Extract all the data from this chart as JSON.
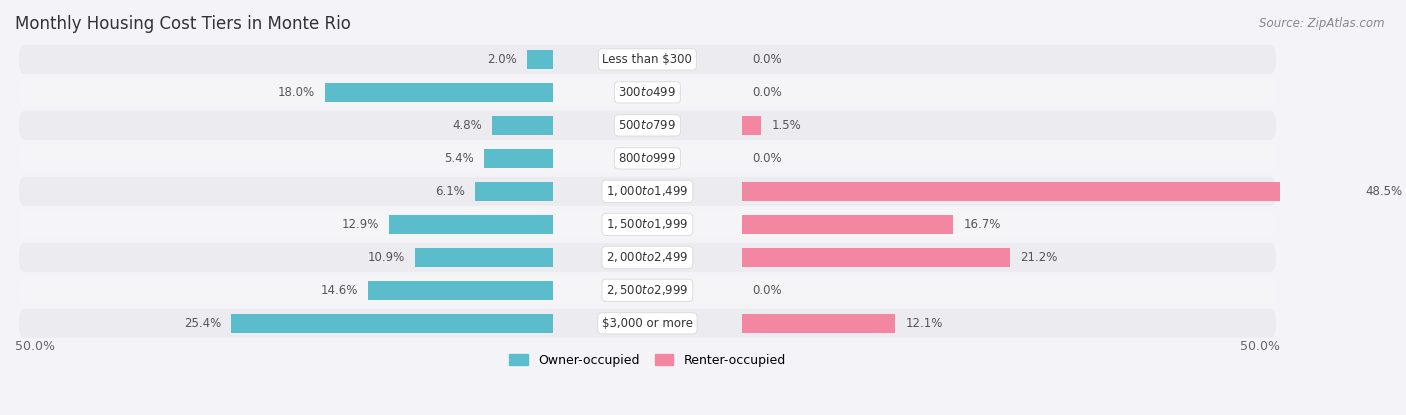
{
  "title": "Monthly Housing Cost Tiers in Monte Rio",
  "source": "Source: ZipAtlas.com",
  "categories": [
    "Less than $300",
    "$300 to $499",
    "$500 to $799",
    "$800 to $999",
    "$1,000 to $1,499",
    "$1,500 to $1,999",
    "$2,000 to $2,499",
    "$2,500 to $2,999",
    "$3,000 or more"
  ],
  "owner_values": [
    2.0,
    18.0,
    4.8,
    5.4,
    6.1,
    12.9,
    10.9,
    14.6,
    25.4
  ],
  "renter_values": [
    0.0,
    0.0,
    1.5,
    0.0,
    48.5,
    16.7,
    21.2,
    0.0,
    12.1
  ],
  "owner_color": "#5bbccc",
  "renter_color": "#f387a2",
  "axis_max": 50.0,
  "x_left_label": "50.0%",
  "x_right_label": "50.0%",
  "legend_owner": "Owner-occupied",
  "legend_renter": "Renter-occupied",
  "row_colors": [
    "#ebebf0",
    "#f5f5f8",
    "#ebebf0",
    "#f5f5f8",
    "#ebebf0",
    "#f5f5f8",
    "#ebebf0",
    "#f5f5f8",
    "#ebebf0"
  ],
  "title_fontsize": 12,
  "source_fontsize": 8.5,
  "bar_label_fontsize": 8.5,
  "category_fontsize": 8.5,
  "label_color": "#555555"
}
